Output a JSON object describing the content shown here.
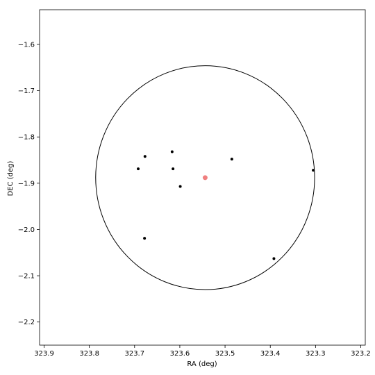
{
  "chart_data": {
    "type": "scatter",
    "title": "",
    "xlabel": "RA (deg)",
    "ylabel": "DEC (deg)",
    "xlim": [
      323.91,
      323.19
    ],
    "ylim": [
      -2.25,
      -1.525
    ],
    "x_inverted": true,
    "grid": false,
    "xticks": [
      323.9,
      323.8,
      323.7,
      323.6,
      323.5,
      323.4,
      323.3,
      323.2
    ],
    "xtick_labels": [
      "323.9",
      "323.8",
      "323.7",
      "323.6",
      "323.5",
      "323.4",
      "323.3",
      "323.2"
    ],
    "yticks": [
      -1.6,
      -1.7,
      -1.8,
      -1.9,
      -2.0,
      -2.1,
      -2.2
    ],
    "ytick_labels": [
      "−1.6",
      "−1.7",
      "−1.8",
      "−1.9",
      "−2.0",
      "−2.1",
      "−2.2"
    ],
    "center": {
      "ra": 323.544,
      "dec": -1.888,
      "color": "#f08080"
    },
    "circle": {
      "ra": 323.544,
      "dec": -1.888,
      "radius_deg": 0.242,
      "color": "#000000"
    },
    "series": [
      {
        "color": "#000000",
        "points": [
          {
            "ra": 323.617,
            "dec": -1.832
          },
          {
            "ra": 323.677,
            "dec": -1.842
          },
          {
            "ra": 323.692,
            "dec": -1.869
          },
          {
            "ra": 323.615,
            "dec": -1.869
          },
          {
            "ra": 323.599,
            "dec": -1.907
          },
          {
            "ra": 323.485,
            "dec": -1.848
          },
          {
            "ra": 323.305,
            "dec": -1.872
          },
          {
            "ra": 323.678,
            "dec": -2.019
          },
          {
            "ra": 323.392,
            "dec": -2.063
          }
        ]
      }
    ]
  }
}
